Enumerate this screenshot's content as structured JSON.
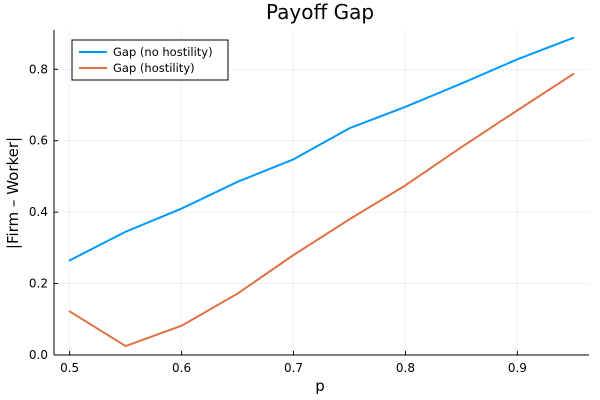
{
  "chart_data": {
    "type": "line",
    "title": "Payoff Gap",
    "xlabel": "p",
    "ylabel": "|Firm – Worker|",
    "x": [
      0.5,
      0.55,
      0.6,
      0.65,
      0.7,
      0.75,
      0.8,
      0.85,
      0.9,
      0.95
    ],
    "xlim": [
      0.486,
      0.964
    ],
    "ylim": [
      0.0,
      0.91
    ],
    "xticks": [
      0.5,
      0.6,
      0.7,
      0.8,
      0.9
    ],
    "xtick_labels": [
      "0.5",
      "0.6",
      "0.7",
      "0.8",
      "0.9"
    ],
    "yticks": [
      0.0,
      0.2,
      0.4,
      0.6,
      0.8
    ],
    "ytick_labels": [
      "0.0",
      "0.2",
      "0.4",
      "0.6",
      "0.8"
    ],
    "grid": true,
    "legend_position": "top-left",
    "series": [
      {
        "name": "Gap (no hostility)",
        "color": "#009AFA",
        "values": [
          0.265,
          0.345,
          0.41,
          0.485,
          0.548,
          0.635,
          0.695,
          0.76,
          0.828,
          0.888
        ]
      },
      {
        "name": "Gap (hostility)",
        "color": "#E26F46",
        "values": [
          0.122,
          0.025,
          0.082,
          0.172,
          0.28,
          0.38,
          0.475,
          0.582,
          0.685,
          0.787
        ]
      }
    ]
  }
}
